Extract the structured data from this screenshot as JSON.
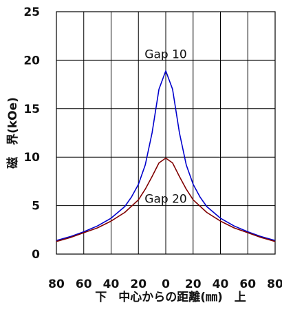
{
  "chart_data": {
    "type": "line",
    "title": "",
    "xlabel": "下　中心からの距離(㎜)　上",
    "ylabel": "磁　界(kOe)",
    "x_tick_labels": [
      "80",
      "60",
      "40",
      "20",
      "0",
      "20",
      "40",
      "60",
      "80"
    ],
    "y_tick_labels": [
      "0",
      "5",
      "10",
      "15",
      "20",
      "25"
    ],
    "xlim": [
      -80,
      80
    ],
    "ylim": [
      0,
      25
    ],
    "grid": true,
    "series": [
      {
        "name": "Gap 10",
        "color": "#0000cc",
        "x": [
          -80,
          -70,
          -60,
          -50,
          -40,
          -30,
          -25,
          -20,
          -15,
          -10,
          -5,
          0,
          5,
          10,
          15,
          20,
          25,
          30,
          40,
          50,
          60,
          70,
          80
        ],
        "y": [
          1.4,
          1.8,
          2.3,
          2.9,
          3.7,
          4.9,
          5.9,
          7.2,
          9.2,
          12.5,
          17.0,
          18.9,
          17.0,
          12.5,
          9.2,
          7.2,
          5.9,
          4.9,
          3.7,
          2.9,
          2.3,
          1.8,
          1.4
        ]
      },
      {
        "name": "Gap 20",
        "color": "#800000",
        "x": [
          -80,
          -70,
          -60,
          -50,
          -40,
          -30,
          -20,
          -15,
          -10,
          -5,
          0,
          5,
          10,
          15,
          20,
          30,
          40,
          50,
          60,
          70,
          80
        ],
        "y": [
          1.3,
          1.7,
          2.2,
          2.7,
          3.4,
          4.3,
          5.6,
          6.7,
          8.0,
          9.4,
          9.9,
          9.4,
          8.0,
          6.7,
          5.6,
          4.3,
          3.4,
          2.7,
          2.2,
          1.7,
          1.3
        ]
      }
    ]
  }
}
